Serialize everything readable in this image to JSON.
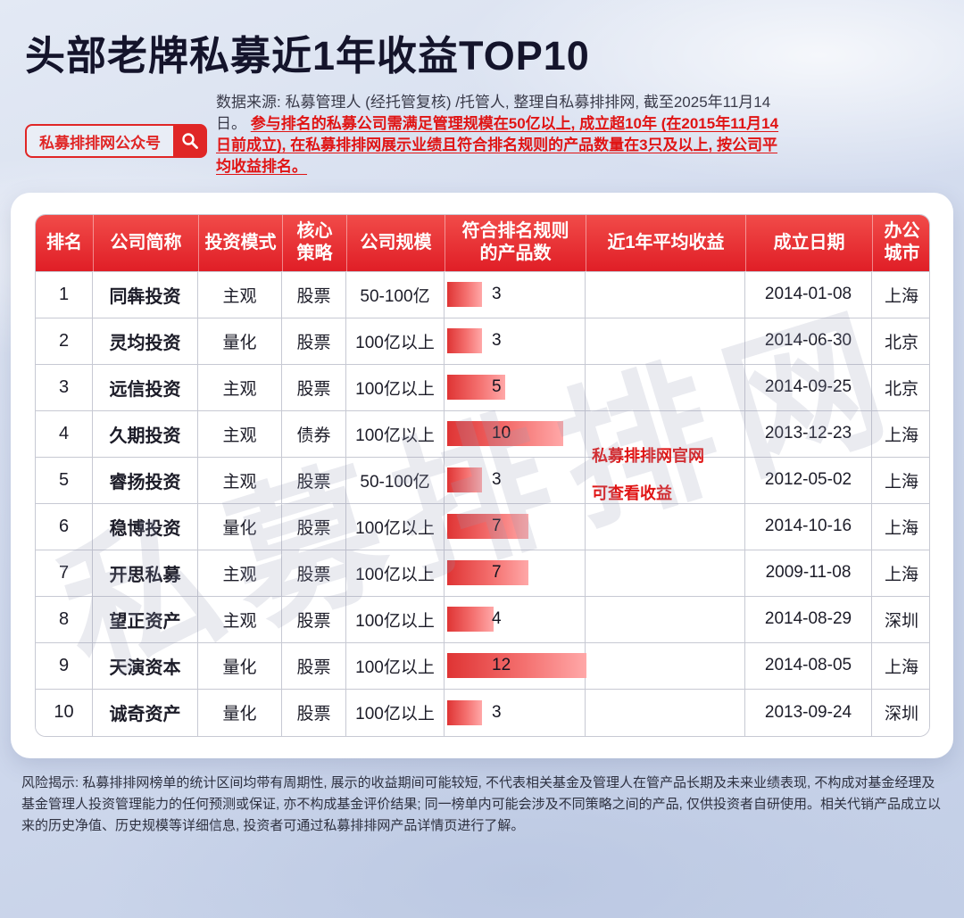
{
  "page": {
    "title": "头部老牌私募近1年收益TOP10",
    "badge_label": "私募排排网公众号",
    "source_note_normal": "数据来源: 私募管理人 (经托管复核) /托管人, 整理自私募排排网, 截至2025年11月14日。",
    "source_note_highlight": "参与排名的私募公司需满足管理规模在50亿以上, 成立超10年 (在2015年11月14日前成立), 在私募排排网展示业绩且符合排名规则的产品数量在3只及以上, 按公司平均收益排名。",
    "watermark": "私募排排网",
    "overlay_note": {
      "line1": "私募排排网官网",
      "line2": "可查看收益"
    },
    "disclaimer": "风险揭示: 私募排排网榜单的统计区间均带有周期性, 展示的收益期间可能较短, 不代表相关基金及管理人在管产品长期及未来业绩表现, 不构成对基金经理及基金管理人投资管理能力的任何预测或保证, 亦不构成基金评价结果; 同一榜单内可能会涉及不同策略之间的产品, 仅供投资者自研使用。相关代销产品成立以来的历史净值、历史规模等详细信息, 投资者可通过私募排排网产品详情页进行了解。"
  },
  "colors": {
    "accent_red": "#e02626",
    "header_red": "#e01e26",
    "bar_red": "#df3434",
    "title_dark": "#14142b"
  },
  "chart_data": {
    "type": "table",
    "title": "头部老牌私募近1年收益TOP10",
    "columns": [
      "排名",
      "公司简称",
      "投资模式",
      "核心\n策略",
      "公司规模",
      "符合排名规则\n的产品数",
      "近1年平均收益",
      "成立日期",
      "办公\n城市"
    ],
    "bar_column": "符合排名规则的产品数",
    "bar_max": 12,
    "note": "近1年平均收益列数值未展示",
    "rows": [
      {
        "rank": "1",
        "company": "同犇投资",
        "mode": "主观",
        "strategy": "股票",
        "scale": "50-100亿",
        "products": 3,
        "founded": "2014-01-08",
        "city": "上海"
      },
      {
        "rank": "2",
        "company": "灵均投资",
        "mode": "量化",
        "strategy": "股票",
        "scale": "100亿以上",
        "products": 3,
        "founded": "2014-06-30",
        "city": "北京"
      },
      {
        "rank": "3",
        "company": "远信投资",
        "mode": "主观",
        "strategy": "股票",
        "scale": "100亿以上",
        "products": 5,
        "founded": "2014-09-25",
        "city": "北京"
      },
      {
        "rank": "4",
        "company": "久期投资",
        "mode": "主观",
        "strategy": "债券",
        "scale": "100亿以上",
        "products": 10,
        "founded": "2013-12-23",
        "city": "上海"
      },
      {
        "rank": "5",
        "company": "睿扬投资",
        "mode": "主观",
        "strategy": "股票",
        "scale": "50-100亿",
        "products": 3,
        "founded": "2012-05-02",
        "city": "上海"
      },
      {
        "rank": "6",
        "company": "稳博投资",
        "mode": "量化",
        "strategy": "股票",
        "scale": "100亿以上",
        "products": 7,
        "founded": "2014-10-16",
        "city": "上海"
      },
      {
        "rank": "7",
        "company": "开思私募",
        "mode": "主观",
        "strategy": "股票",
        "scale": "100亿以上",
        "products": 7,
        "founded": "2009-11-08",
        "city": "上海"
      },
      {
        "rank": "8",
        "company": "望正资产",
        "mode": "主观",
        "strategy": "股票",
        "scale": "100亿以上",
        "products": 4,
        "founded": "2014-08-29",
        "city": "深圳"
      },
      {
        "rank": "9",
        "company": "天演资本",
        "mode": "量化",
        "strategy": "股票",
        "scale": "100亿以上",
        "products": 12,
        "founded": "2014-08-05",
        "city": "上海"
      },
      {
        "rank": "10",
        "company": "诚奇资产",
        "mode": "量化",
        "strategy": "股票",
        "scale": "100亿以上",
        "products": 3,
        "founded": "2013-09-24",
        "city": "深圳"
      }
    ]
  }
}
